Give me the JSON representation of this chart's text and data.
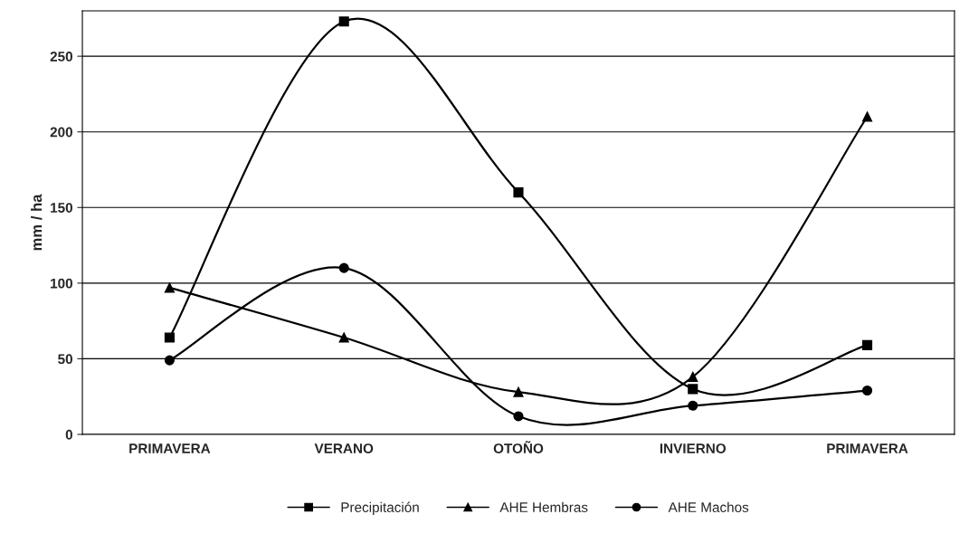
{
  "chart_data": {
    "type": "line",
    "ylabel": "mm / ha",
    "categories": [
      "PRIMAVERA",
      "VERANO",
      "OTOÑO",
      "INVIERNO",
      "PRIMAVERA"
    ],
    "series": [
      {
        "name": "Precipitación",
        "color": "#000000",
        "marker": "square",
        "values": [
          64,
          273,
          160,
          30,
          59
        ]
      },
      {
        "name": "AHE Hembras",
        "color": "#000000",
        "marker": "triangle",
        "values": [
          97,
          64,
          28,
          38,
          210
        ]
      },
      {
        "name": "AHE Machos",
        "color": "#000000",
        "marker": "circle",
        "values": [
          49,
          110,
          12,
          19,
          29
        ]
      }
    ],
    "ylim": [
      0,
      280
    ],
    "yticks": [
      0,
      50,
      100,
      150,
      200,
      250
    ],
    "grid": "y",
    "legend": "bottom",
    "line_style": "solid"
  }
}
